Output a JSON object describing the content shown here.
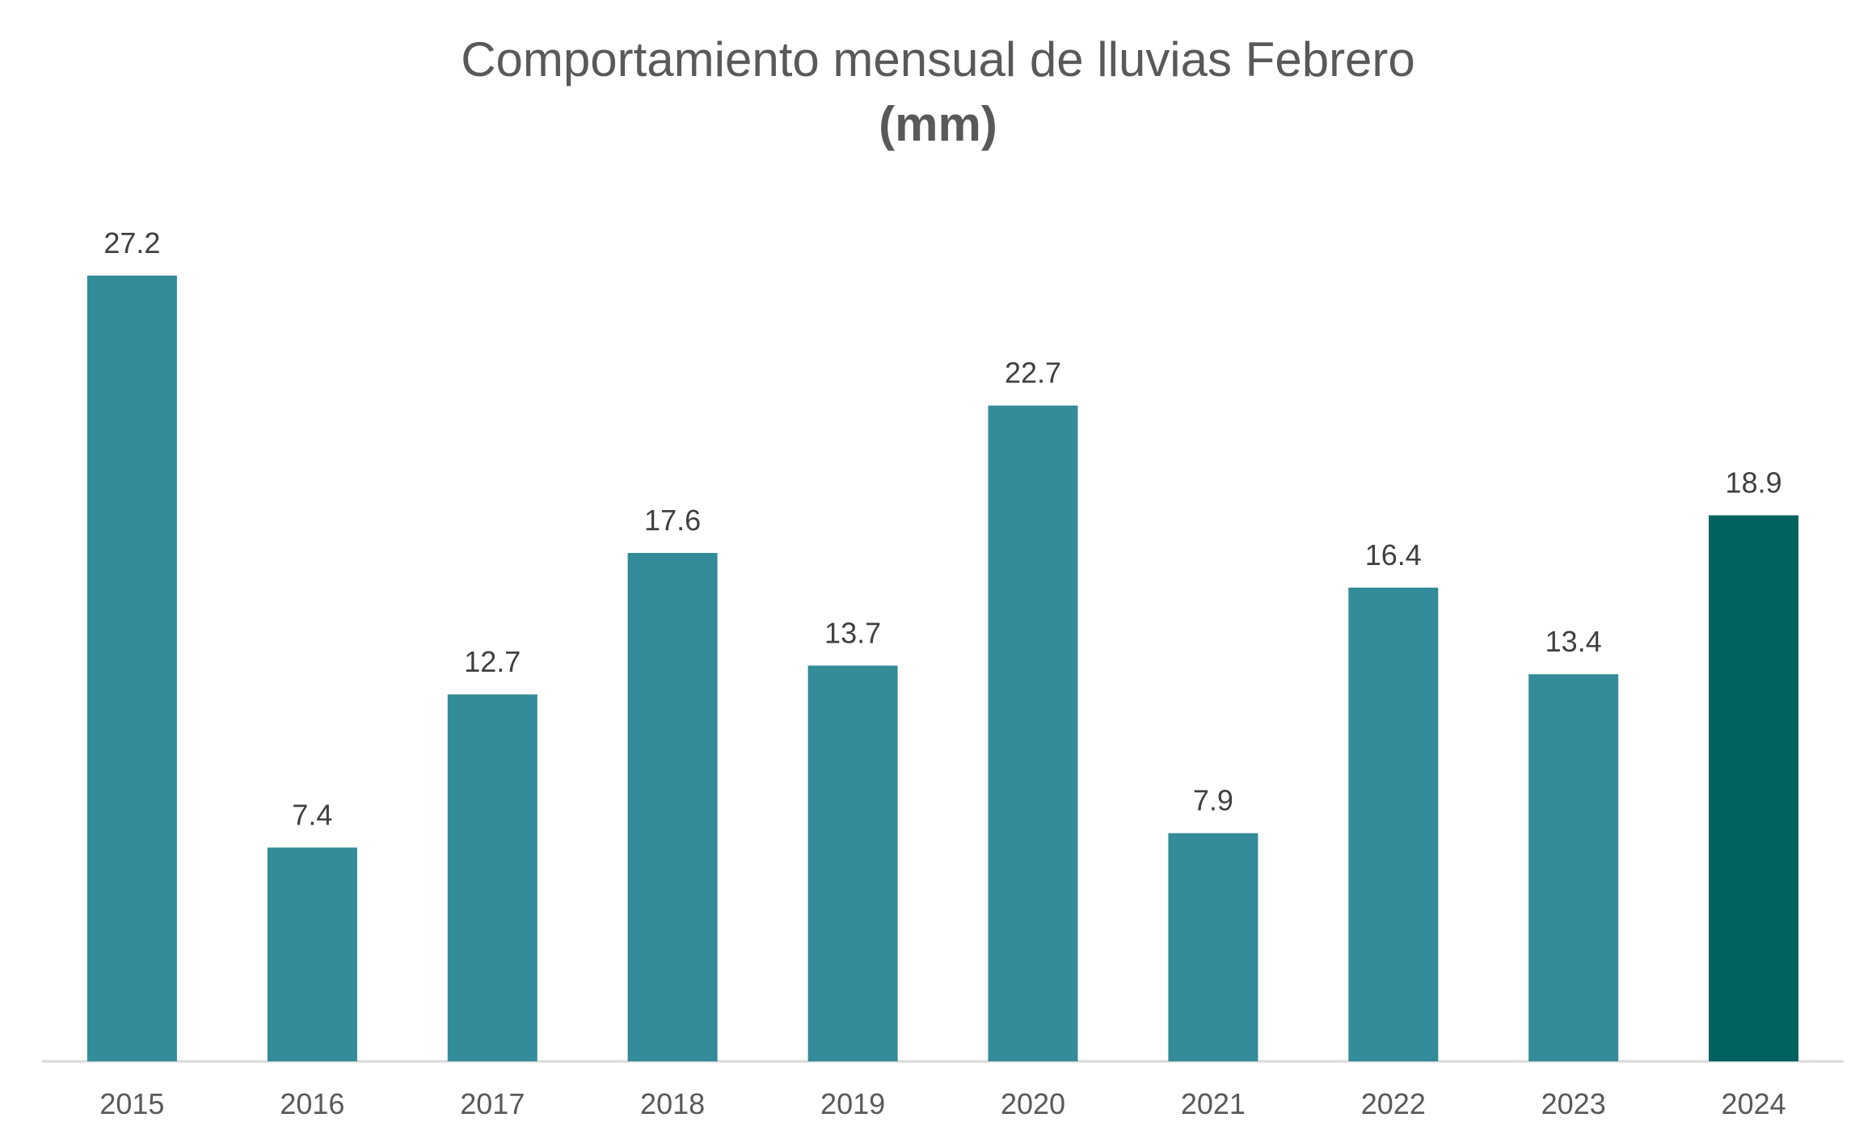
{
  "chart_data": {
    "type": "bar",
    "title": "Comportamiento mensual de lluvias Febrero",
    "subtitle": "(mm)",
    "xlabel": "",
    "ylabel": "",
    "categories": [
      "2015",
      "2016",
      "2017",
      "2018",
      "2019",
      "2020",
      "2021",
      "2022",
      "2023",
      "2024"
    ],
    "series": [
      {
        "values": [
          27.2,
          7.4,
          12.7,
          17.6,
          13.7,
          22.7,
          7.9,
          16.4,
          13.4,
          18.9
        ]
      }
    ],
    "value_labels": [
      "27.2",
      "7.4",
      "12.7",
      "17.6",
      "13.7",
      "22.7",
      "7.9",
      "16.4",
      "13.4",
      "18.9"
    ],
    "ylim": [
      0,
      30
    ],
    "grid": false,
    "legend": "none",
    "colors": {
      "bar": "#348b99",
      "highlight_bar": "#02625f",
      "axis": "#d9d9d9",
      "text": "#595959"
    },
    "highlight_category": "2024"
  }
}
